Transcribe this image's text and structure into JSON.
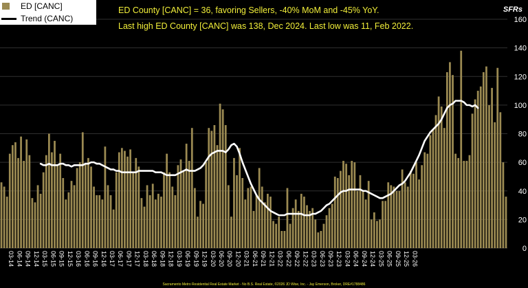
{
  "legend": {
    "bar_label": "ED [CANC]",
    "line_label": "Trend (CANC)"
  },
  "headline": {
    "line1": "ED County [CANC] = 36, favoring Sellers, -40% MoM and -45% YoY.",
    "line2": "Last high ED County [CANC] was 138, Dec 2024. Last low was 11, Feb 2022."
  },
  "tag": "SFRs",
  "footer": "Sacramento Metro Residential Real Estate Market - No B.S. Real Estate, ©2026 JD Wise, Inc. - Jay Emerson, Broker, DRE#1788486",
  "colors": {
    "background": "#000000",
    "bar": "#9b8a52",
    "trend": "#ffffff",
    "headline": "#f2ef3a",
    "axis_text": "#ffffff"
  },
  "chart_data": {
    "type": "bar",
    "start_month": "2014-01",
    "ylim": [
      0,
      160
    ],
    "y_ticks": [
      0,
      20,
      40,
      60,
      80,
      100,
      120,
      140,
      160
    ],
    "x_tick_labels": [
      "03-14",
      "06-14",
      "09-14",
      "12-14",
      "03-15",
      "06-15",
      "09-15",
      "12-15",
      "03-16",
      "06-16",
      "09-16",
      "12-16",
      "03-17",
      "06-17",
      "09-17",
      "12-17",
      "03-18",
      "06-18",
      "09-18",
      "12-18",
      "03-19",
      "06-19",
      "09-19",
      "12-19",
      "03-20",
      "06-20",
      "09-20",
      "12-20",
      "03-21",
      "06-21",
      "09-21",
      "12-21",
      "03-22",
      "06-22",
      "09-22",
      "12-22",
      "03-23",
      "06-23",
      "09-23",
      "12-23",
      "03-24",
      "06-24",
      "09-24",
      "12-24",
      "03-25",
      "06-25",
      "09-25",
      "12-25",
      "03-26"
    ],
    "grid": true,
    "legend_position": "top-left",
    "series": [
      {
        "name": "ED [CANC]",
        "type": "bar",
        "values": [
          46,
          43,
          36,
          66,
          72,
          74,
          63,
          78,
          61,
          76,
          65,
          35,
          32,
          44,
          38,
          53,
          65,
          80,
          67,
          75,
          58,
          66,
          49,
          34,
          39,
          47,
          44,
          56,
          60,
          81,
          59,
          63,
          57,
          43,
          37,
          37,
          34,
          71,
          44,
          37,
          27,
          53,
          67,
          70,
          68,
          64,
          69,
          53,
          63,
          57,
          35,
          29,
          44,
          37,
          45,
          34,
          38,
          36,
          53,
          66,
          53,
          43,
          37,
          58,
          62,
          54,
          73,
          61,
          84,
          42,
          22,
          33,
          31,
          60,
          84,
          82,
          86,
          72,
          101,
          97,
          86,
          44,
          22,
          63,
          51,
          70,
          49,
          34,
          42,
          43,
          26,
          37,
          56,
          43,
          32,
          38,
          36,
          19,
          17,
          22,
          12,
          12,
          42,
          17,
          28,
          34,
          26,
          38,
          36,
          30,
          26,
          28,
          20,
          11,
          12,
          17,
          23,
          28,
          31,
          50,
          49,
          54,
          61,
          59,
          51,
          61,
          60,
          40,
          51,
          40,
          34,
          47,
          20,
          25,
          19,
          20,
          33,
          33,
          46,
          44,
          43,
          40,
          40,
          55,
          46,
          43,
          54,
          52,
          60,
          48,
          58,
          67,
          66,
          79,
          83,
          93,
          106,
          99,
          84,
          123,
          130,
          121,
          66,
          63,
          138,
          61,
          61,
          65,
          94,
          104,
          110,
          113,
          123,
          127,
          100,
          112,
          88,
          126,
          95,
          60,
          36
        ]
      },
      {
        "name": "Trend (CANC)",
        "type": "line",
        "start_index": 14,
        "values": [
          59,
          58,
          58,
          59,
          58,
          58,
          58,
          59,
          59,
          58,
          58,
          57,
          58,
          58,
          58,
          58,
          59,
          59,
          60,
          60,
          59,
          59,
          58,
          57,
          56,
          55,
          55,
          54,
          54,
          53,
          53,
          53,
          53,
          53,
          53,
          54,
          54,
          54,
          54,
          54,
          54,
          53,
          53,
          53,
          52,
          51,
          51,
          51,
          51,
          52,
          53,
          54,
          55,
          54,
          54,
          54,
          55,
          56,
          58,
          61,
          64,
          66,
          67,
          68,
          68,
          68,
          67,
          69,
          72,
          73,
          71,
          66,
          60,
          55,
          50,
          45,
          41,
          37,
          34,
          32,
          30,
          28,
          26,
          25,
          24,
          23,
          23,
          23,
          24,
          24,
          24,
          24,
          24,
          24,
          23,
          23,
          23,
          24,
          24,
          25,
          26,
          28,
          30,
          31,
          33,
          35,
          37,
          39,
          40,
          40,
          41,
          41,
          41,
          41,
          41,
          40,
          40,
          39,
          38,
          37,
          36,
          35,
          35,
          36,
          37,
          38,
          40,
          42,
          44,
          45,
          47,
          50,
          53,
          57,
          61,
          65,
          70,
          75,
          78,
          81,
          83,
          85,
          87,
          90,
          94,
          98,
          100,
          101,
          103,
          103,
          103,
          102,
          100,
          100,
          99,
          100,
          98
        ]
      }
    ]
  }
}
